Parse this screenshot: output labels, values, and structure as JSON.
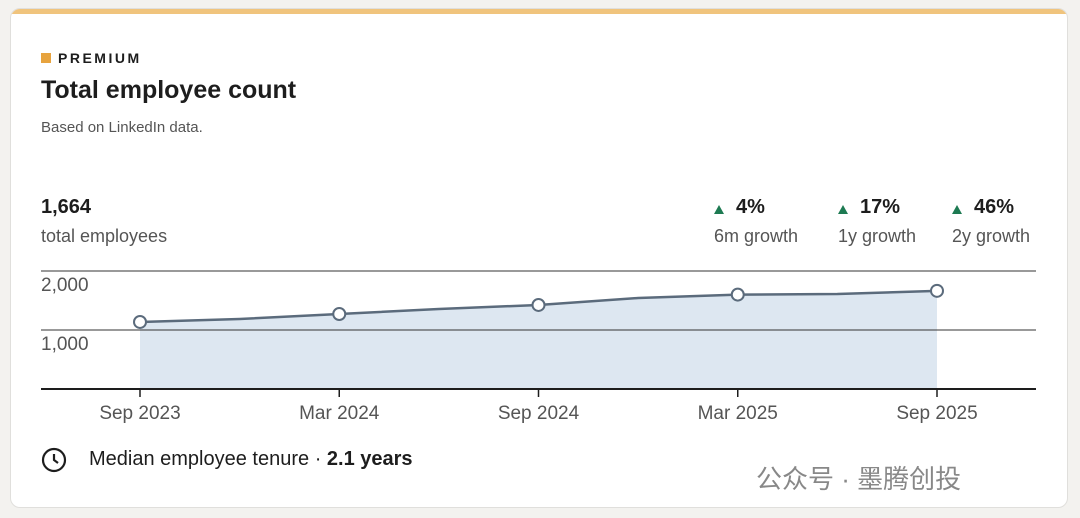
{
  "badge": "PREMIUM",
  "title": "Total employee count",
  "subtitle": "Based on LinkedIn data.",
  "summary": {
    "value": "1,664",
    "label": "total employees"
  },
  "growth": [
    {
      "value": "4%",
      "label": "6m growth"
    },
    {
      "value": "17%",
      "label": "1y growth"
    },
    {
      "value": "46%",
      "label": "2y growth"
    }
  ],
  "chart_data": {
    "type": "area",
    "categories": [
      "Sep 2023",
      null,
      "Mar 2024",
      null,
      "Sep 2024",
      null,
      "Mar 2025",
      null,
      "Sep 2025"
    ],
    "values": [
      1136,
      1186,
      1271,
      1356,
      1424,
      1542,
      1600,
      1610,
      1664
    ],
    "color": "#5b6b7c",
    "fill": "#dde7f1",
    "ylim": [
      0,
      2000
    ],
    "yticks": [
      {
        "value": 1000,
        "label": "1,000"
      },
      {
        "value": 2000,
        "label": "2,000"
      }
    ],
    "grid": true
  },
  "footer": {
    "label": "Median employee tenure · ",
    "value": "2.1 years"
  },
  "watermark": "公众号 · 墨腾创投"
}
